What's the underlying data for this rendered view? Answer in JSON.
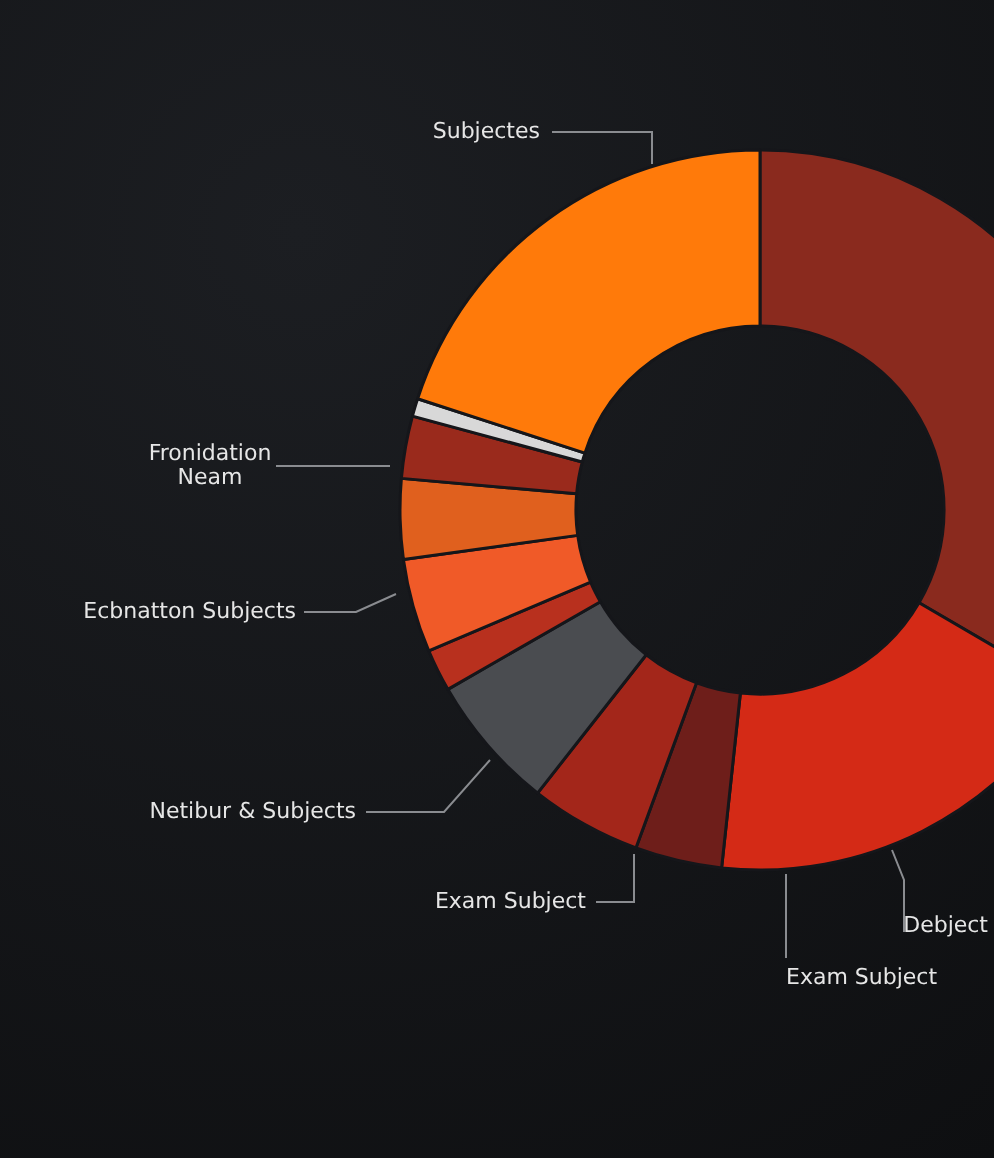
{
  "chart_data": {
    "type": "donut",
    "categories": [
      null,
      "Exam Subject",
      null,
      "Exam Subject",
      "Netibur & Subjects",
      null,
      "Ecbnatton Subjects",
      null,
      "Fronidation Neam",
      null,
      "Subjectes"
    ],
    "values": [
      33.4,
      18.3,
      3.9,
      5,
      6.1,
      1.9,
      4.2,
      3.6,
      2.8,
      0.8,
      20
    ],
    "colors": [
      "#8a2a1e",
      "#d42a16",
      "#6e1e1a",
      "#a3261a",
      "#4a4c50",
      "#b8301e",
      "#f05a28",
      "#e0601e",
      "#9a2a1c",
      "#d8d8d8",
      "#ff7a0a"
    ],
    "annotations": [
      "Debject"
    ],
    "legend": false
  }
}
